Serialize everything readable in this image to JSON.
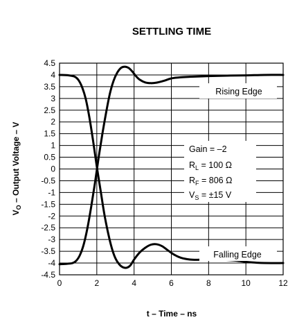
{
  "chart_data": {
    "type": "line",
    "title": "SETTLING TIME",
    "xlabel": "t – Time – ns",
    "ylabel": "V_O – Output Voltage – V",
    "ylabel_main": "V",
    "ylabel_sub": "O",
    "ylabel_rest": " – Output Voltage – V",
    "xlim": [
      0,
      12
    ],
    "ylim": [
      -4.5,
      4.5
    ],
    "x_ticks": [
      0,
      2,
      4,
      6,
      8,
      10,
      12
    ],
    "y_ticks": [
      4.5,
      4,
      3.5,
      3,
      2.5,
      2,
      1.5,
      1,
      0.5,
      0,
      -0.5,
      -1,
      -1.5,
      -2,
      -2.5,
      -3,
      -3.5,
      -4,
      -4.5
    ],
    "y_tick_labels": [
      "4.5",
      "4",
      "3.5",
      "3",
      "2.5",
      "2",
      "1.5",
      "1",
      "0.5",
      "0",
      "-0.5",
      "-1",
      "-1.5",
      "-2",
      "-2.5",
      "-3",
      "-3.5",
      "-4",
      "-4.5"
    ],
    "grid": true,
    "series": [
      {
        "name": "Rising Edge",
        "x": [
          0,
          0.4,
          0.7,
          0.9,
          1.1,
          1.3,
          1.5,
          1.7,
          1.9,
          2.1,
          2.3,
          2.5,
          2.7,
          2.9,
          3.1,
          3.3,
          3.5,
          3.7,
          3.9,
          4.1,
          4.3,
          4.6,
          4.9,
          5.2,
          5.6,
          6.0,
          6.5,
          7.0,
          8.0,
          9.0,
          10.0,
          11.0,
          12.0
        ],
        "y": [
          -4.05,
          -4.03,
          -4.0,
          -3.9,
          -3.65,
          -3.2,
          -2.5,
          -1.6,
          -0.6,
          0.5,
          1.5,
          2.4,
          3.2,
          3.75,
          4.1,
          4.3,
          4.35,
          4.3,
          4.15,
          3.95,
          3.8,
          3.68,
          3.65,
          3.67,
          3.75,
          3.85,
          3.9,
          3.92,
          3.95,
          3.97,
          3.98,
          4.0,
          4.0
        ]
      },
      {
        "name": "Falling Edge",
        "x": [
          0,
          0.5,
          0.8,
          1.0,
          1.2,
          1.4,
          1.6,
          1.8,
          2.0,
          2.2,
          2.4,
          2.6,
          2.8,
          3.0,
          3.2,
          3.4,
          3.6,
          3.8,
          4.0,
          4.3,
          4.6,
          4.9,
          5.2,
          5.5,
          5.8,
          6.1,
          6.5,
          7.0,
          7.5,
          8.0,
          8.5,
          9.0,
          9.5,
          10.0,
          10.5,
          11.0,
          12.0
        ],
        "y": [
          4.0,
          3.98,
          3.93,
          3.8,
          3.5,
          3.0,
          2.2,
          1.2,
          0.1,
          -0.9,
          -1.9,
          -2.7,
          -3.35,
          -3.8,
          -4.05,
          -4.18,
          -4.2,
          -4.1,
          -3.85,
          -3.55,
          -3.35,
          -3.22,
          -3.2,
          -3.28,
          -3.45,
          -3.62,
          -3.77,
          -3.85,
          -3.86,
          -3.85,
          -3.85,
          -3.87,
          -3.9,
          -3.95,
          -3.98,
          -4.0,
          -4.0
        ]
      }
    ],
    "annotations": {
      "rising_edge": "Rising Edge",
      "falling_edge": "Falling Edge",
      "gain": "Gain = –2",
      "rl_main": "R",
      "rl_sub": "L",
      "rl_rest": " = 100 Ω",
      "rf_main": "R",
      "rf_sub": "F",
      "rf_rest": " = 806 Ω",
      "vs_main": "V",
      "vs_sub": "S",
      "vs_rest": " = ±15 V"
    },
    "colors": {
      "line": "#000000",
      "grid": "#000000",
      "background": "#ffffff"
    }
  }
}
